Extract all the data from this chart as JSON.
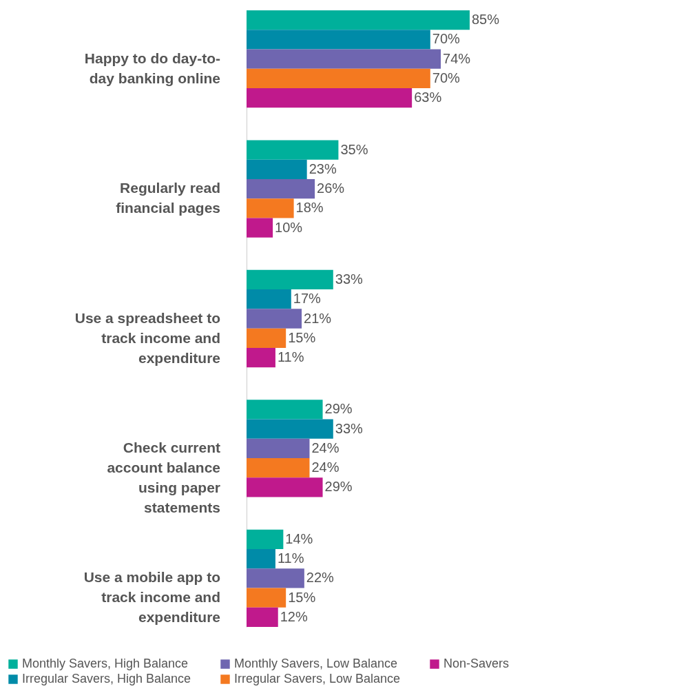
{
  "chart_data": {
    "type": "bar",
    "orientation": "horizontal",
    "legend": "bottom",
    "categories": [
      "Happy to do day-to-day banking online",
      "Regularly read financial pages",
      "Use a spreadsheet to track income and expenditure",
      "Check current account balance using paper statements",
      "Use a mobile app to track income and expenditure"
    ],
    "series": [
      {
        "name": "Monthly Savers, High Balance",
        "color": "#00b09b",
        "values": [
          85,
          35,
          33,
          29,
          14
        ],
        "value_labels": [
          "85%",
          "35%",
          "33%",
          "29%",
          "14%"
        ]
      },
      {
        "name": "Irregular Savers, High Balance",
        "color": "#008ba8",
        "values": [
          70,
          23,
          17,
          33,
          11
        ],
        "value_labels": [
          "70%",
          "23%",
          "17%",
          "33%",
          "11%"
        ]
      },
      {
        "name": "Monthly Savers, Low Balance",
        "color": "#6f66b0",
        "values": [
          74,
          26,
          21,
          24,
          22
        ],
        "value_labels": [
          "74%",
          "26%",
          "21%",
          "24%",
          "22%"
        ]
      },
      {
        "name": "Irregular Savers, Low Balance",
        "color": "#f47920",
        "values": [
          70,
          18,
          15,
          24,
          15
        ],
        "value_labels": [
          "70%",
          "18%",
          "15%",
          "24%",
          "15%"
        ]
      },
      {
        "name": "Non-Savers",
        "color": "#c0198c",
        "values": [
          63,
          10,
          11,
          29,
          12
        ],
        "value_labels": [
          "63%",
          "10%",
          "11%",
          "29%",
          "12%"
        ]
      }
    ]
  }
}
